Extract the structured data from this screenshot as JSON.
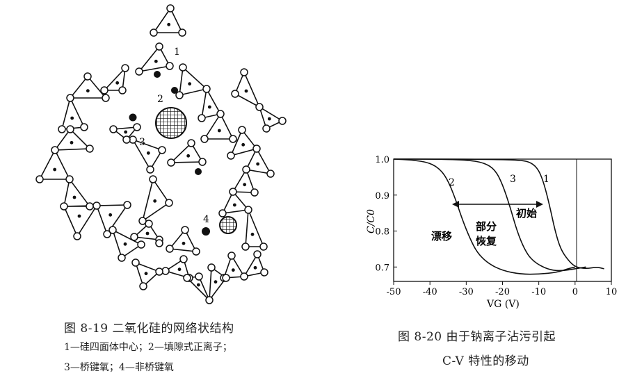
{
  "figure_8_19": {
    "caption": "图 8-19   二氧化硅的网络状结构",
    "legend_line1": "1—硅四面体中心；2—填隙式正离子；",
    "legend_line2": "3—桥键氧；4—非桥键氧",
    "labels": {
      "l1": "1",
      "l2": "2",
      "l3": "3",
      "l4": "4"
    }
  },
  "figure_8_20": {
    "caption_line1": "图 8-20   由于钠离子沾污引起",
    "caption_line2": "C-V 特性的移动",
    "annotations": {
      "drift": "漂移",
      "partial1": "部分",
      "partial2": "恢复",
      "initial": "初始"
    },
    "curve_labels": {
      "c1": "1",
      "c2": "2",
      "c3": "3"
    }
  },
  "chart_data": {
    "type": "line",
    "title": "",
    "xlabel": "V_G (V)",
    "ylabel": "C/C_0",
    "xlim": [
      -50,
      10
    ],
    "ylim": [
      0.66,
      1.0
    ],
    "x_ticks": [
      "-50",
      "-40",
      "-30",
      "-20",
      "-10",
      "0",
      "10"
    ],
    "y_ticks": [
      "1.0",
      "0.9",
      "0.8",
      "0.7"
    ],
    "series": [
      {
        "name": "2",
        "x": [
          -50,
          -45,
          -40,
          -37,
          -35,
          -33,
          -31,
          -29,
          -27,
          -24,
          -20,
          -15,
          -10,
          -5,
          -2,
          0
        ],
        "y": [
          1.0,
          0.998,
          0.99,
          0.97,
          0.94,
          0.89,
          0.83,
          0.78,
          0.74,
          0.71,
          0.69,
          0.68,
          0.68,
          0.685,
          0.695,
          0.7
        ]
      },
      {
        "name": "3",
        "x": [
          -50,
          -40,
          -30,
          -25,
          -22,
          -20,
          -18,
          -16,
          -14,
          -12,
          -9,
          -6,
          -3,
          0,
          3
        ],
        "y": [
          1.0,
          1.0,
          0.998,
          0.99,
          0.97,
          0.93,
          0.87,
          0.8,
          0.75,
          0.72,
          0.7,
          0.69,
          0.69,
          0.695,
          0.7
        ]
      },
      {
        "name": "1",
        "x": [
          -50,
          -30,
          -15,
          -12,
          -10,
          -8.5,
          -7,
          -5.5,
          -4,
          -2,
          0,
          3,
          6,
          8
        ],
        "y": [
          1.0,
          1.0,
          0.998,
          0.99,
          0.97,
          0.93,
          0.87,
          0.8,
          0.75,
          0.72,
          0.7,
          0.695,
          0.7,
          0.695
        ]
      }
    ],
    "annotations": [
      {
        "text": "漂移",
        "x": -37,
        "y": 0.79
      },
      {
        "text": "部分恢复",
        "x": -25,
        "y": 0.8
      },
      {
        "text": "初始",
        "x": -14,
        "y": 0.85
      }
    ]
  }
}
